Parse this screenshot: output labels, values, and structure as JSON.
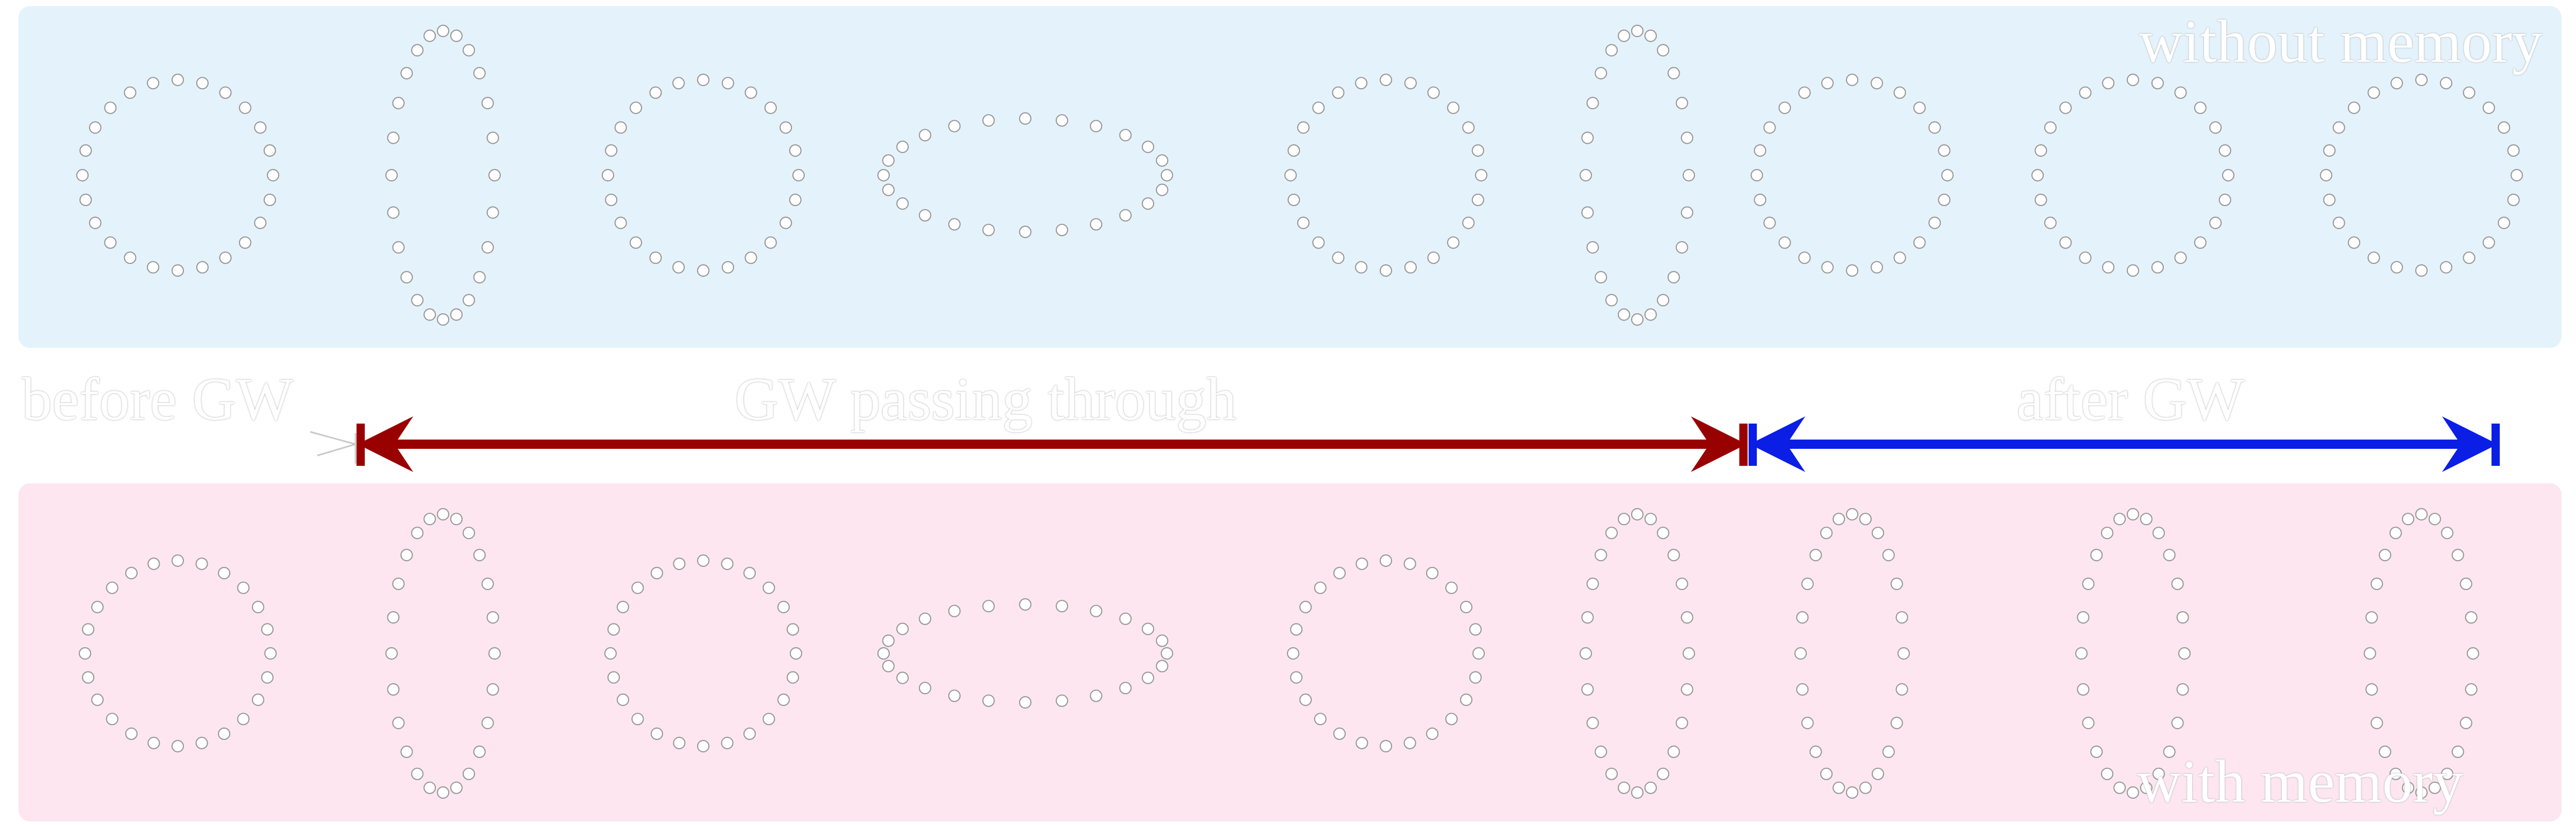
{
  "diagram": {
    "top_panel": {
      "label": "without memory",
      "background": "#e4f2fb",
      "ring_shapes": [
        "circle",
        "vertical-ellipse",
        "circle",
        "horizontal-ellipse",
        "circle",
        "vertical-ellipse",
        "circle",
        "circle",
        "circle"
      ]
    },
    "bottom_panel": {
      "label": "with memory",
      "background": "#fde6ef",
      "ring_shapes": [
        "circle",
        "vertical-ellipse",
        "circle",
        "horizontal-ellipse",
        "circle",
        "vertical-ellipse",
        "vertical-ellipse",
        "vertical-ellipse",
        "vertical-ellipse"
      ]
    },
    "phase_labels": {
      "before": "before GW",
      "passing": "GW passing through",
      "after": "after GW"
    },
    "arrows": {
      "passing_color": "#990000",
      "after_color": "#0a1ee6"
    },
    "particle_style": {
      "fill": "#ffffff",
      "stroke": "#9a9a9a"
    }
  }
}
